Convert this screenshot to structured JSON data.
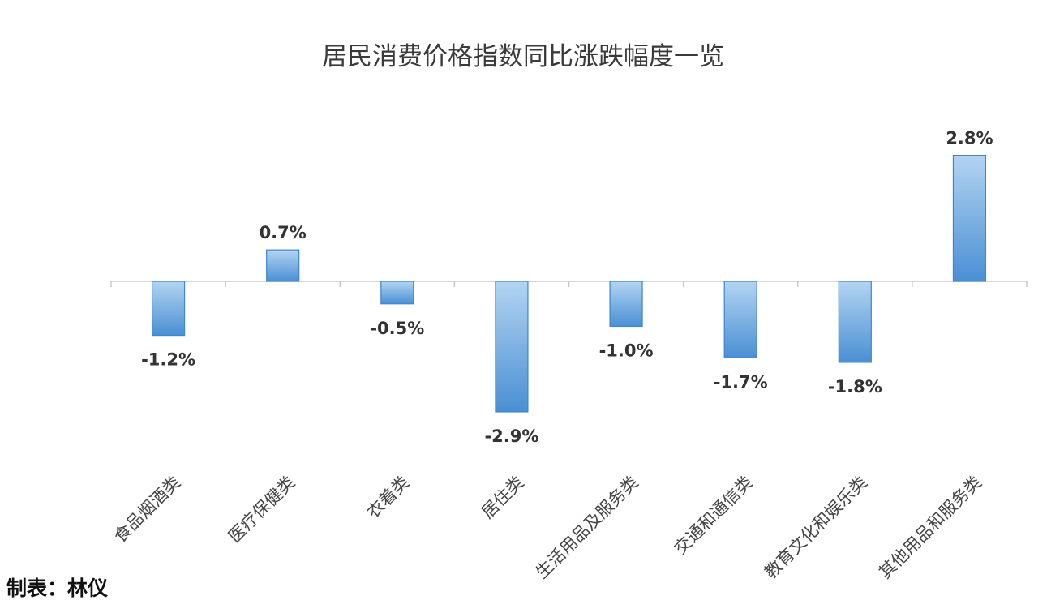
{
  "chart_data": {
    "type": "bar",
    "title": "居民消费价格指数同比涨跌幅度一览",
    "categories": [
      "食品烟酒类",
      "医疗保健类",
      "衣着类",
      "居住类",
      "生活用品及服务类",
      "交通和通信类",
      "教育文化和娱乐类",
      "其他用品和服务类"
    ],
    "values": [
      -1.2,
      0.7,
      -0.5,
      -2.9,
      -1.0,
      -1.7,
      -1.8,
      2.8
    ],
    "data_labels": [
      "-1.2%",
      "0.7%",
      "-0.5%",
      "-2.9%",
      "-1.0%",
      "-1.7%",
      "-1.8%",
      "2.8%"
    ],
    "unit": "%",
    "xlabel": "",
    "ylabel": "",
    "grid": false,
    "legend": "none",
    "colors": {
      "bar_top": "#a9cdef",
      "bar_bottom": "#4a8fd4",
      "bar_stroke": "#3f86cf",
      "axis": "#c8c8c8"
    }
  },
  "footer": {
    "credit": "制表：林仪"
  }
}
